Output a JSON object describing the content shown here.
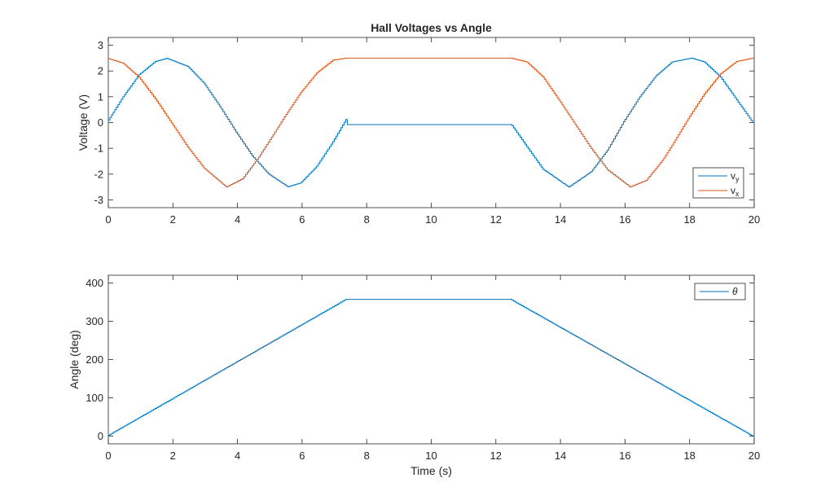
{
  "chart_data": [
    {
      "type": "line",
      "title": "Hall Voltages vs Angle",
      "xlabel": "",
      "ylabel": "Voltage (V)",
      "xlim": [
        0,
        20
      ],
      "ylim": [
        -3.3,
        3.3
      ],
      "xticks": [
        "0",
        "2",
        "4",
        "6",
        "8",
        "10",
        "12",
        "14",
        "16",
        "18",
        "20"
      ],
      "yticks": [
        "-3",
        "-2",
        "-1",
        "0",
        "1",
        "2",
        "3"
      ],
      "grid": false,
      "legend_position": "bottom-right",
      "series": [
        {
          "name": "v_y",
          "label_main": "v",
          "label_sub": "y",
          "color": "#0072BD",
          "x": [
            0,
            0.5,
            1,
            1.5,
            1.85,
            2.5,
            3,
            3.5,
            4,
            4.5,
            5,
            5.6,
            6,
            6.5,
            7,
            7.4,
            7.45,
            12.5,
            12.55,
            13,
            13.5,
            14.3,
            15,
            15.5,
            16,
            16.5,
            17,
            17.5,
            18.1,
            18.5,
            19,
            19.5,
            20
          ],
          "y": [
            0,
            1.0,
            1.86,
            2.37,
            2.49,
            2.18,
            1.53,
            0.62,
            -0.37,
            -1.29,
            -1.99,
            -2.49,
            -2.34,
            -1.69,
            -0.74,
            0.12,
            -0.08,
            -0.08,
            -0.12,
            -0.93,
            -1.81,
            -2.5,
            -1.9,
            -1.07,
            0.03,
            1.0,
            1.81,
            2.35,
            2.5,
            2.35,
            1.76,
            0.88,
            0.0
          ]
        },
        {
          "name": "v_x",
          "label_main": "v",
          "label_sub": "x",
          "color": "#D95319",
          "x": [
            0,
            0.5,
            1,
            1.5,
            2,
            2.5,
            3,
            3.7,
            4.2,
            4.7,
            5,
            5.5,
            6,
            6.5,
            7,
            7.4,
            12.5,
            13,
            13.5,
            14,
            14.5,
            15,
            15.5,
            16.2,
            16.7,
            17.2,
            17.5,
            18,
            18.5,
            19,
            19.5,
            20
          ],
          "y": [
            2.5,
            2.3,
            1.75,
            0.92,
            -0.02,
            -0.95,
            -1.76,
            -2.5,
            -2.18,
            -1.34,
            -0.76,
            0.22,
            1.16,
            1.93,
            2.42,
            2.5,
            2.5,
            2.35,
            1.77,
            0.87,
            -0.07,
            -1.01,
            -1.83,
            -2.5,
            -2.24,
            -1.47,
            -0.88,
            0.15,
            1.11,
            1.89,
            2.37,
            2.5
          ]
        }
      ]
    },
    {
      "type": "line",
      "title": "",
      "xlabel": "Time (s)",
      "ylabel": "Angle (deg)",
      "xlim": [
        0,
        20
      ],
      "ylim": [
        -20,
        420
      ],
      "xticks": [
        "0",
        "2",
        "4",
        "6",
        "8",
        "10",
        "12",
        "14",
        "16",
        "18",
        "20"
      ],
      "yticks": [
        "0",
        "100",
        "200",
        "300",
        "400"
      ],
      "grid": false,
      "legend_position": "top-right",
      "series": [
        {
          "name": "θ",
          "label_main": "θ",
          "label_sub": "",
          "color": "#0072BD",
          "x": [
            0,
            7.4,
            12.5,
            20
          ],
          "y": [
            0,
            357,
            357,
            0
          ]
        }
      ]
    }
  ]
}
